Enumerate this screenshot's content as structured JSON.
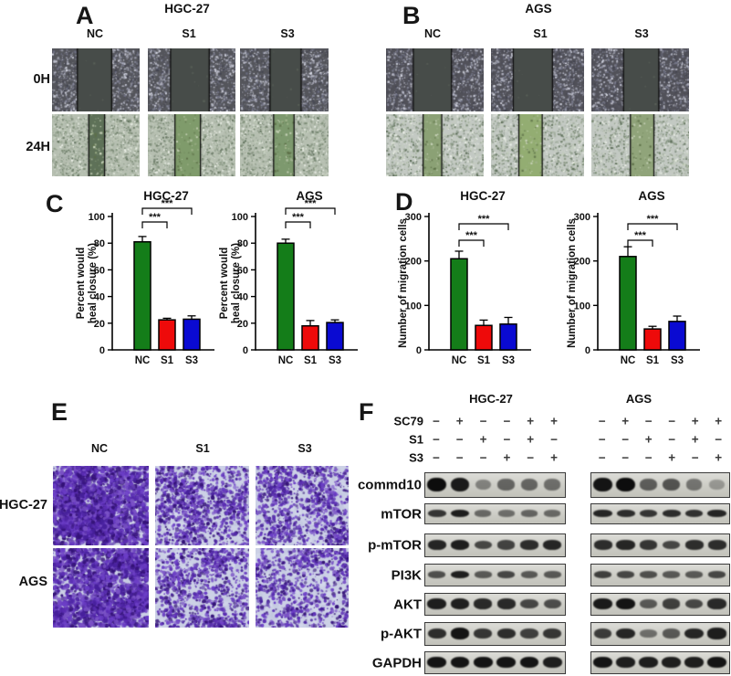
{
  "figure": {
    "panels": {
      "A": {
        "label": "A",
        "title": "HGC-27",
        "columns": [
          "NC",
          "S1",
          "S3"
        ],
        "rows": [
          "0H",
          "24H"
        ],
        "image_base_0h": "#54555b",
        "image_base_24h": "#b6bfb1",
        "images": [
          {
            "row": "0H",
            "col": "NC",
            "kind": "0h",
            "band": [
              0.29,
              0.68
            ]
          },
          {
            "row": "0H",
            "col": "S1",
            "kind": "0h",
            "band": [
              0.26,
              0.7
            ]
          },
          {
            "row": "0H",
            "col": "S3",
            "kind": "0h",
            "band": [
              0.34,
              0.69
            ]
          },
          {
            "row": "24H",
            "col": "NC",
            "kind": "24h",
            "band": [
              0.42,
              0.6
            ],
            "band_color": "#5e7158"
          },
          {
            "row": "24H",
            "col": "S1",
            "kind": "24h",
            "band": [
              0.31,
              0.6
            ],
            "band_color": "#7f9b6b"
          },
          {
            "row": "24H",
            "col": "S3",
            "kind": "24h",
            "band": [
              0.38,
              0.61
            ],
            "band_color": "#7d996e"
          }
        ]
      },
      "B": {
        "label": "B",
        "title": "AGS",
        "columns": [
          "NC",
          "S1",
          "S3"
        ],
        "image_base_0h": "#515159",
        "image_base_24h": "#c3c9c3",
        "images": [
          {
            "row": "0H",
            "col": "NC",
            "kind": "0h",
            "band": [
              0.28,
              0.67
            ]
          },
          {
            "row": "0H",
            "col": "S1",
            "kind": "0h",
            "band": [
              0.24,
              0.66
            ]
          },
          {
            "row": "0H",
            "col": "S3",
            "kind": "0h",
            "band": [
              0.33,
              0.69
            ]
          },
          {
            "row": "24H",
            "col": "NC",
            "kind": "24h",
            "band": [
              0.38,
              0.57
            ],
            "band_color": "#8ba175"
          },
          {
            "row": "24H",
            "col": "S1",
            "kind": "24h",
            "band": [
              0.3,
              0.55
            ],
            "band_color": "#93ad72"
          },
          {
            "row": "24H",
            "col": "S3",
            "kind": "24h",
            "band": [
              0.4,
              0.64
            ],
            "band_color": "#90a47a"
          }
        ]
      },
      "C": {
        "label": "C"
      },
      "D": {
        "label": "D"
      },
      "E": {
        "label": "E",
        "columns": [
          "NC",
          "S1",
          "S3"
        ],
        "rows": [
          "HGC-27",
          "AGS"
        ],
        "images": [
          {
            "row": "HGC-27",
            "col": "NC",
            "density": 3000
          },
          {
            "row": "HGC-27",
            "col": "S1",
            "density": 1400
          },
          {
            "row": "HGC-27",
            "col": "S3",
            "density": 1200
          },
          {
            "row": "AGS",
            "col": "NC",
            "density": 2400
          },
          {
            "row": "AGS",
            "col": "S1",
            "density": 1300
          },
          {
            "row": "AGS",
            "col": "S3",
            "density": 1100
          }
        ]
      },
      "F": {
        "label": "F",
        "groups": [
          "HGC-27",
          "AGS"
        ],
        "treatments": [
          {
            "label": "SC79",
            "signs_hgc": [
              "−",
              "+",
              "−",
              "−",
              "+",
              "+"
            ],
            "signs_ags": [
              "−",
              "+",
              "−",
              "−",
              "+",
              "+"
            ]
          },
          {
            "label": "S1",
            "signs_hgc": [
              "−",
              "−",
              "+",
              "−",
              "+",
              "−"
            ],
            "signs_ags": [
              "−",
              "−",
              "+",
              "−",
              "+",
              "−"
            ]
          },
          {
            "label": "S3",
            "signs_hgc": [
              "−",
              "−",
              "−",
              "+",
              "−",
              "+"
            ],
            "signs_ags": [
              "−",
              "−",
              "−",
              "+",
              "−",
              "+"
            ]
          }
        ],
        "proteins": [
          "commd10",
          "mTOR",
          "p-mTOR",
          "PI3K",
          "AKT",
          "p-AKT",
          "GAPDH"
        ],
        "band_intensities": {
          "commd10": {
            "HGC-27": [
              1.0,
              0.92,
              0.3,
              0.48,
              0.48,
              0.42
            ],
            "AGS": [
              0.95,
              1.0,
              0.52,
              0.58,
              0.38,
              0.18
            ]
          },
          "mTOR": {
            "HGC-27": [
              0.75,
              0.9,
              0.45,
              0.42,
              0.48,
              0.45
            ],
            "AGS": [
              0.85,
              0.8,
              0.75,
              0.8,
              0.78,
              0.85
            ]
          },
          "p-mTOR": {
            "HGC-27": [
              0.85,
              0.9,
              0.65,
              0.68,
              0.8,
              0.85
            ],
            "AGS": [
              0.8,
              0.85,
              0.75,
              0.65,
              0.8,
              0.8
            ]
          },
          "PI3K": {
            "HGC-27": [
              0.6,
              0.88,
              0.55,
              0.65,
              0.55,
              0.55
            ],
            "AGS": [
              0.7,
              0.65,
              0.6,
              0.55,
              0.55,
              0.65
            ]
          },
          "AKT": {
            "HGC-27": [
              0.9,
              0.88,
              0.82,
              0.82,
              0.65,
              0.62
            ],
            "AGS": [
              0.92,
              0.95,
              0.55,
              0.7,
              0.65,
              0.82
            ]
          },
          "p-AKT": {
            "HGC-27": [
              0.8,
              0.95,
              0.75,
              0.8,
              0.7,
              0.75
            ],
            "AGS": [
              0.72,
              0.85,
              0.42,
              0.55,
              0.85,
              0.9
            ]
          },
          "GAPDH": {
            "HGC-27": [
              0.95,
              0.95,
              0.95,
              0.95,
              0.95,
              0.9
            ],
            "AGS": [
              0.95,
              0.9,
              0.9,
              0.9,
              0.9,
              0.95
            ]
          }
        }
      }
    }
  },
  "chart_data": [
    {
      "type": "bar",
      "panel": "C",
      "title": "HGC-27",
      "ylabel_lines": [
        "Percent would",
        "heal closure (%)"
      ],
      "categories": [
        "NC",
        "S1",
        "S3"
      ],
      "values": [
        81,
        22.5,
        23
      ],
      "errors": [
        4,
        1.2,
        2.5
      ],
      "ylim": [
        0,
        100
      ],
      "yticks": [
        0,
        20,
        40,
        60,
        80,
        100
      ],
      "significance": [
        {
          "from": 0,
          "to": 2,
          "label": "***"
        },
        {
          "from": 0,
          "to": 1,
          "label": "***"
        }
      ],
      "bracket_offsets": [
        -9,
        6
      ]
    },
    {
      "type": "bar",
      "panel": "C",
      "title": "AGS",
      "ylabel_lines": [
        "Percent would",
        "heal closure (%)"
      ],
      "categories": [
        "NC",
        "S1",
        "S3"
      ],
      "values": [
        80,
        18,
        20.5
      ],
      "errors": [
        3,
        4,
        2
      ],
      "ylim": [
        0,
        100
      ],
      "yticks": [
        0,
        20,
        40,
        60,
        80,
        100
      ],
      "significance": [
        {
          "from": 0,
          "to": 2,
          "label": "***"
        },
        {
          "from": 0,
          "to": 1,
          "label": "***"
        }
      ],
      "bracket_offsets": [
        -9,
        6
      ]
    },
    {
      "type": "bar",
      "panel": "D",
      "title": "HGC-27",
      "ylabel_lines": [
        "Number of migration cells"
      ],
      "categories": [
        "NC",
        "S1",
        "S3"
      ],
      "values": [
        205,
        55,
        58
      ],
      "errors": [
        17,
        12,
        15
      ],
      "ylim": [
        0,
        300
      ],
      "yticks": [
        0,
        100,
        200,
        300
      ],
      "significance": [
        {
          "from": 0,
          "to": 2,
          "label": "***"
        },
        {
          "from": 0,
          "to": 1,
          "label": "***"
        }
      ],
      "bracket_offsets": [
        8,
        26
      ]
    },
    {
      "type": "bar",
      "panel": "D",
      "title": "AGS",
      "ylabel_lines": [
        "Number of migration cells"
      ],
      "categories": [
        "NC",
        "S1",
        "S3"
      ],
      "values": [
        210,
        47,
        64
      ],
      "errors": [
        22,
        6,
        12
      ],
      "ylim": [
        0,
        300
      ],
      "yticks": [
        0,
        100,
        200,
        300
      ],
      "significance": [
        {
          "from": 0,
          "to": 2,
          "label": "***"
        },
        {
          "from": 0,
          "to": 1,
          "label": "***"
        }
      ],
      "bracket_offsets": [
        8,
        26
      ]
    }
  ],
  "colors": {
    "bar_nc": "#147d19",
    "bar_s1": "#ee0a0a",
    "bar_s3": "#0a0ad2",
    "transwell_bg": "#ccd1e6",
    "transwell_stain": "#5a2db2",
    "scratch_band_0h": "#474c49",
    "blot_band": "#0d0d0d"
  }
}
